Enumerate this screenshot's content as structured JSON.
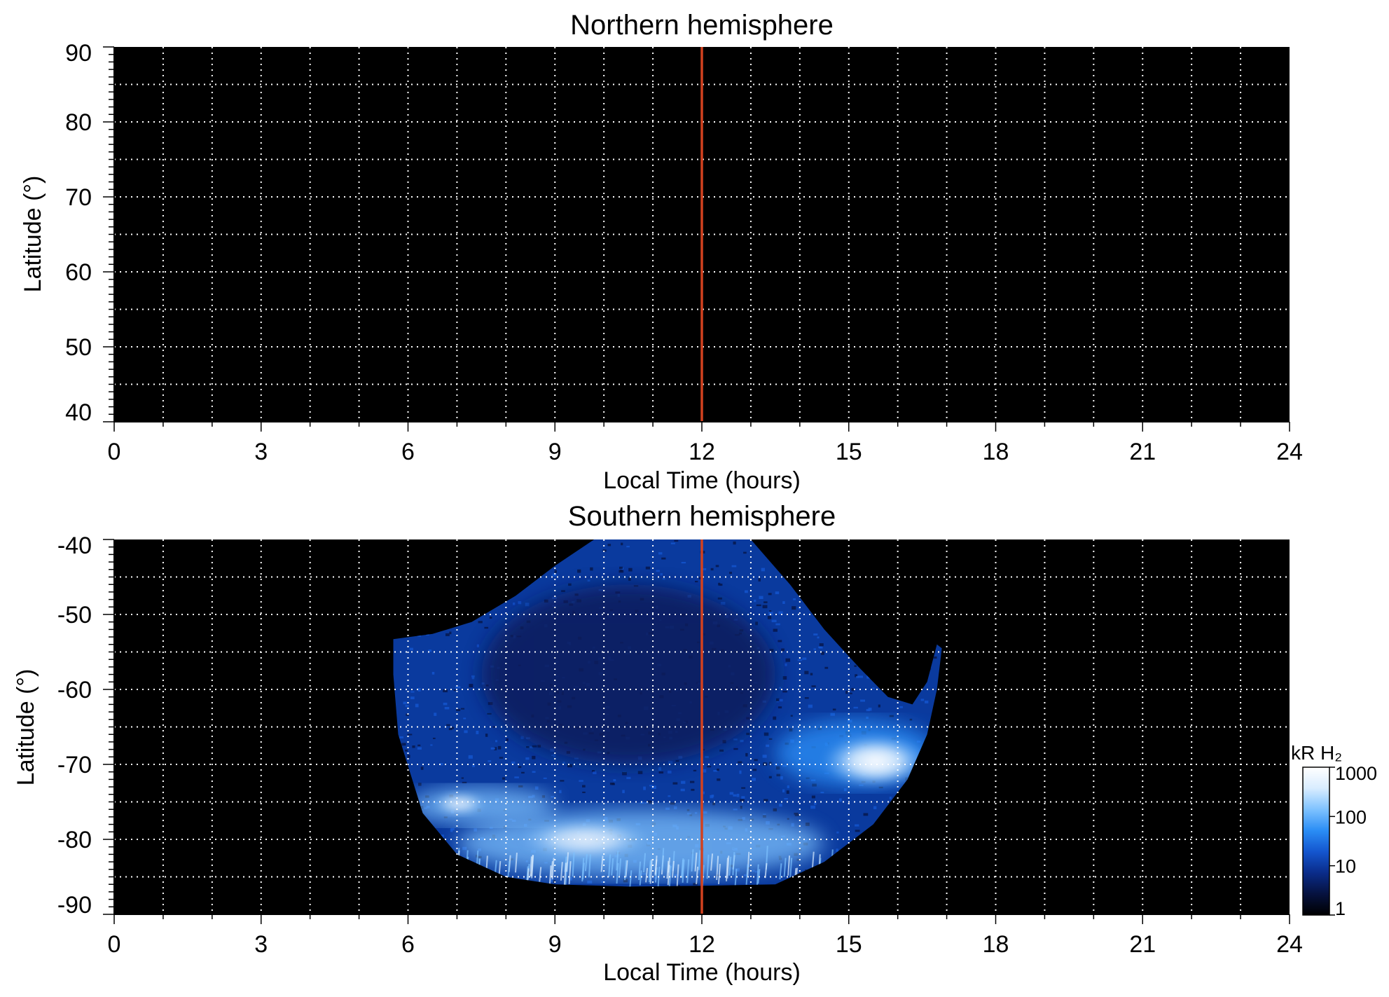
{
  "colors": {
    "background": "#000000",
    "grid": "#ffffff",
    "noon_line": "#d2411f",
    "colormap": [
      "#000000",
      "#06123f",
      "#0a2c8a",
      "#1456cf",
      "#2a8df5",
      "#7ec2ff",
      "#d8ecff",
      "#ffffff"
    ]
  },
  "chart_data": [
    {
      "type": "heatmap",
      "title": "Northern hemisphere",
      "xlabel": "Local Time (hours)",
      "ylabel": "Latitude (°)",
      "xlim": [
        0,
        24
      ],
      "ylim": [
        40,
        90
      ],
      "xticks": [
        "0",
        "3",
        "6",
        "9",
        "12",
        "15",
        "18",
        "21",
        "24"
      ],
      "yticks": [
        "40",
        "50",
        "60",
        "70",
        "80",
        "90"
      ],
      "grid": true,
      "grid_style": "dotted",
      "grid_x_step_hours": 1,
      "grid_y_step_deg": 5,
      "reference_line": {
        "axis": "x",
        "value": 12,
        "color": "#d2411f"
      },
      "emission": "none"
    },
    {
      "type": "heatmap",
      "title": "Southern hemisphere",
      "xlabel": "Local Time (hours)",
      "ylabel": "Latitude (°)",
      "xlim": [
        0,
        24
      ],
      "ylim": [
        -90,
        -40
      ],
      "xticks": [
        "0",
        "3",
        "6",
        "9",
        "12",
        "15",
        "18",
        "21",
        "24"
      ],
      "yticks": [
        "-40",
        "-50",
        "-60",
        "-70",
        "-80",
        "-90"
      ],
      "grid": true,
      "grid_style": "dotted",
      "grid_x_step_hours": 1,
      "grid_y_step_deg": 5,
      "reference_line": {
        "axis": "x",
        "value": 12,
        "color": "#d2411f"
      },
      "coverage": {
        "outline": [
          [
            5.7,
            -53.3
          ],
          [
            6.5,
            -52.6
          ],
          [
            7.3,
            -51.0
          ],
          [
            8.2,
            -47.5
          ],
          [
            9.0,
            -43.5
          ],
          [
            9.8,
            -40.0
          ],
          [
            13.0,
            -40.0
          ],
          [
            13.8,
            -46.0
          ],
          [
            14.5,
            -52.0
          ],
          [
            15.2,
            -57.0
          ],
          [
            15.8,
            -61.0
          ],
          [
            16.3,
            -62.0
          ],
          [
            16.6,
            -59.0
          ],
          [
            16.8,
            -54.0
          ],
          [
            16.9,
            -54.5
          ],
          [
            16.8,
            -60.0
          ],
          [
            16.6,
            -66.0
          ],
          [
            16.2,
            -72.0
          ],
          [
            15.5,
            -78.0
          ],
          [
            14.5,
            -83.0
          ],
          [
            13.5,
            -86.0
          ],
          [
            12.0,
            -86.2
          ],
          [
            10.5,
            -86.3
          ],
          [
            9.0,
            -86.0
          ],
          [
            8.0,
            -85.0
          ],
          [
            7.0,
            -82.0
          ],
          [
            6.3,
            -76.5
          ],
          [
            5.8,
            -66.0
          ],
          [
            5.7,
            -58.0
          ]
        ],
        "features": [
          {
            "region": "dark polar-cap region",
            "lt": [
              7.5,
              13.5
            ],
            "lat": [
              -70,
              -46
            ],
            "brightness_kR": 5
          },
          {
            "region": "main auroral oval (dawn)",
            "lt": [
              6.0,
              9.0
            ],
            "lat": [
              -78,
              -73
            ],
            "brightness_kR": 800
          },
          {
            "region": "main auroral oval (dusk)",
            "lt": [
              13.5,
              16.8
            ],
            "lat": [
              -73,
              -64
            ],
            "brightness_kR": 1000
          },
          {
            "region": "diffuse equatorward band",
            "lt": [
              7.0,
              14.5
            ],
            "lat": [
              -85,
              -76
            ],
            "brightness_kR": 300
          }
        ]
      },
      "colorbar": {
        "title": "kR H₂",
        "scale": "log",
        "ticks": [
          "1000",
          "100",
          "10",
          "1"
        ],
        "range": [
          1,
          1000
        ]
      }
    }
  ]
}
